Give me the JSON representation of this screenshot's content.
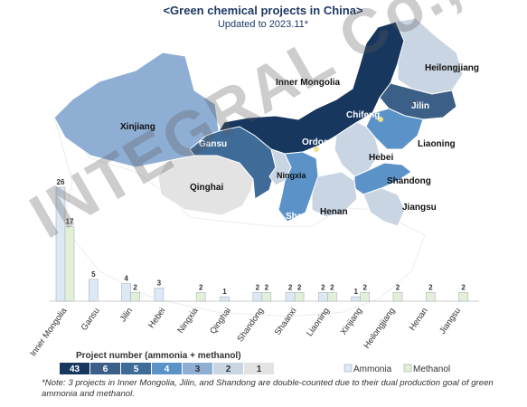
{
  "title": "<Green chemical projects in China>",
  "subtitle": "Updated to 2023.11*",
  "watermark": "INTEGRAL Co., Ltd",
  "map_labels": {
    "xinjiang": "Xinjiang",
    "inner_mongolia": "Inner Mongolia",
    "heilongjiang": "Heilongjiang",
    "jilin": "Jilin",
    "liaoning": "Liaoning",
    "gansu": "Gansu",
    "qinghai": "Qinghai",
    "ningxia": "Ningxia",
    "hebei": "Hebei",
    "shandong": "Shandong",
    "shaanxi": "Shaanxi",
    "henan": "Henan",
    "jiangsu": "Jiangsu",
    "chifeng": "Chifeng",
    "ordos": "Ordos"
  },
  "colors": {
    "ammonia_bar": "#dde8f5",
    "methanol_bar": "#e3efd6",
    "scale": [
      "#17375e",
      "#3b5f86",
      "#3e6b97",
      "#5b93c9",
      "#8eaed4",
      "#c9d5e3",
      "#e3e3e3"
    ],
    "title": "#1f3864"
  },
  "legend": {
    "project_number_title": "Project number (ammonia + methanol)",
    "scale_labels": [
      "43",
      "6",
      "5",
      "4",
      "3",
      "2",
      "1"
    ],
    "ammonia": "Ammonia",
    "methanol": "Methanol"
  },
  "note": "*Note: 3 projects in Inner Mongolia, Jilin, and Shandong are double-counted due to their dual production goal of green ammonia and methanol.",
  "chart_data": {
    "type": "bar",
    "categories": [
      "Inner Mongolia",
      "Gansu",
      "Jilin",
      "Hebei",
      "Ningxia",
      "Qinghai",
      "Shandong",
      "Shaanxi",
      "Liaoning",
      "Xinjiang",
      "Heilongjiang",
      "Henan",
      "Jiangsu"
    ],
    "series": [
      {
        "name": "Ammonia",
        "values": [
          26,
          5,
          4,
          3,
          0,
          1,
          2,
          2,
          2,
          1,
          0,
          0,
          0
        ]
      },
      {
        "name": "Methanol",
        "values": [
          17,
          0,
          2,
          0,
          2,
          0,
          2,
          2,
          2,
          2,
          2,
          2,
          2
        ]
      }
    ],
    "ylim": [
      0,
      26
    ]
  }
}
